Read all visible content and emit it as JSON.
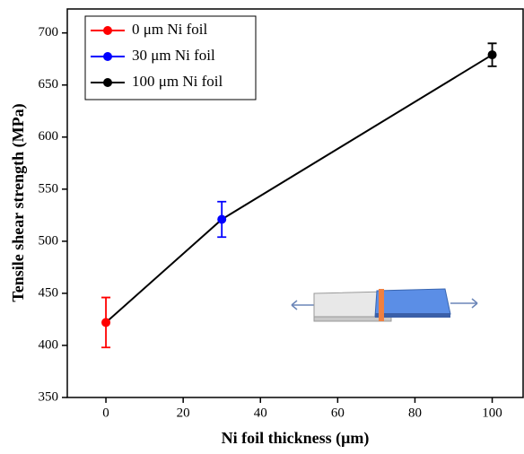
{
  "chart_data": {
    "type": "errorbar",
    "x_label": "Ni foil thickness (μm)",
    "y_label": "Tensile shear strength (MPa)",
    "xlim": [
      -10,
      108
    ],
    "xticks": [
      0,
      20,
      40,
      60,
      80,
      100
    ],
    "ylim": [
      350,
      723
    ],
    "yticks": [
      350,
      400,
      450,
      500,
      550,
      600,
      650,
      700
    ],
    "line_color": "#000000",
    "legend": "upper left",
    "series": [
      {
        "name": "0 μm Ni foil",
        "color": "#ff0000",
        "x": [
          0
        ],
        "values": [
          422
        ],
        "errors": [
          24
        ]
      },
      {
        "name": "30 μm Ni foil",
        "color": "#0000ff",
        "x": [
          30
        ],
        "values": [
          521
        ],
        "errors": [
          17
        ]
      },
      {
        "name": "100 μm Ni foil",
        "color": "#000000",
        "x": [
          100
        ],
        "values": [
          679
        ],
        "errors": [
          11
        ]
      }
    ]
  }
}
